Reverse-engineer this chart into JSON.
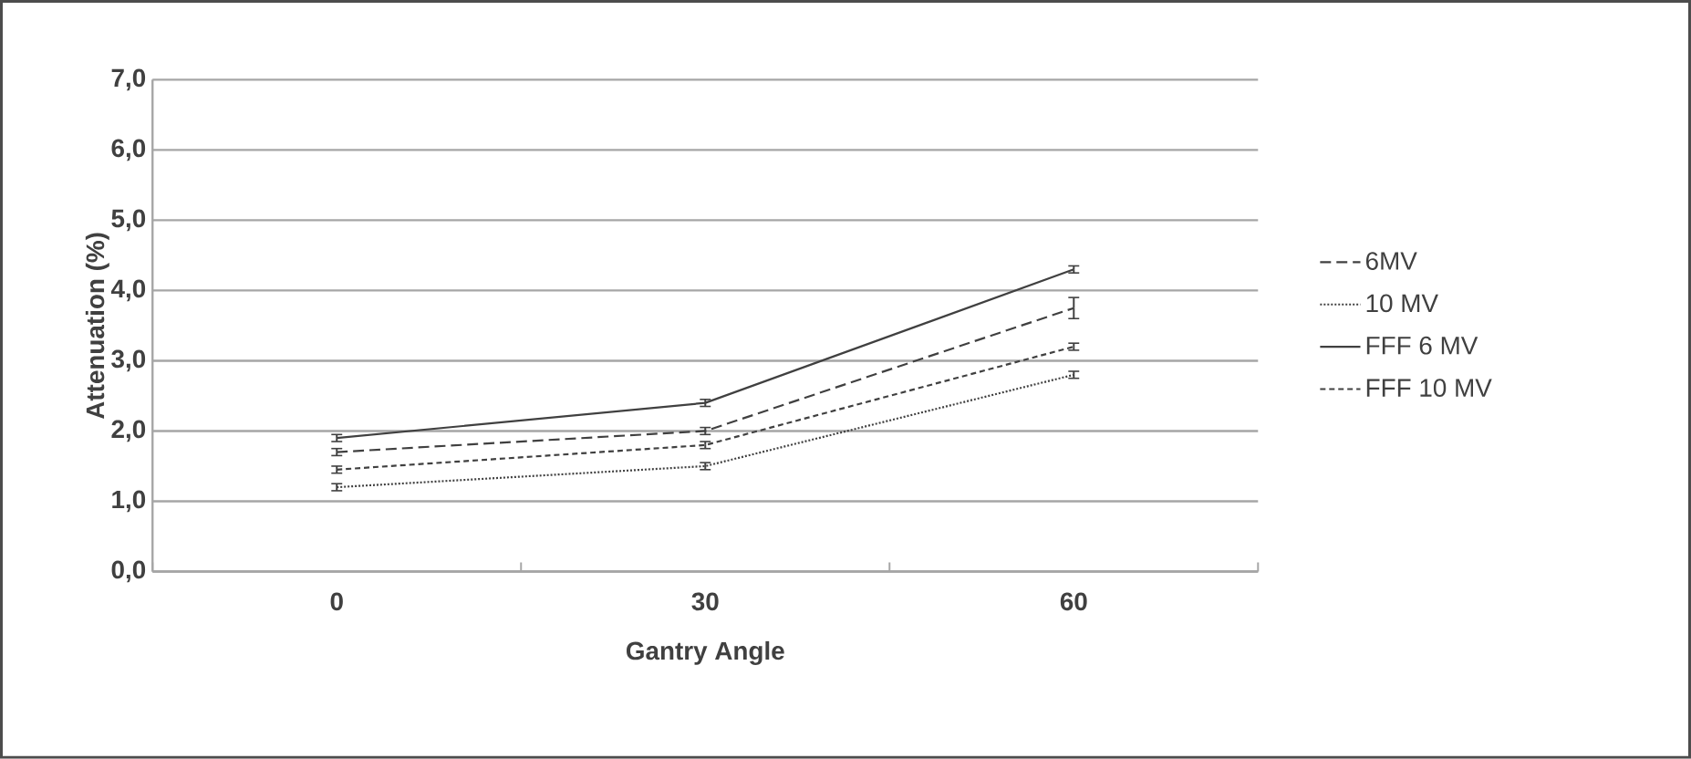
{
  "chart_data": {
    "type": "line",
    "xlabel": "Gantry Angle",
    "ylabel": "Attenuation (%)",
    "categories": [
      "0",
      "30",
      "60"
    ],
    "series": [
      {
        "name": "6MV",
        "color": "#404040",
        "line_style": "dashed",
        "values": [
          1.7,
          2.0,
          3.75
        ],
        "errors": [
          0.05,
          0.05,
          0.15
        ]
      },
      {
        "name": "10 MV",
        "color": "#404040",
        "line_style": "dotted",
        "values": [
          1.2,
          1.5,
          2.8
        ],
        "errors": [
          0.05,
          0.05,
          0.05
        ]
      },
      {
        "name": "FFF 6 MV",
        "color": "#404040",
        "line_style": "solid",
        "values": [
          1.9,
          2.4,
          4.3
        ],
        "errors": [
          0.05,
          0.05,
          0.05
        ]
      },
      {
        "name": "FFF 10 MV",
        "color": "#404040",
        "line_style": "dashed",
        "values": [
          1.45,
          1.8,
          3.2
        ],
        "errors": [
          0.05,
          0.05,
          0.05
        ]
      }
    ],
    "ylim": [
      0,
      7
    ],
    "yticks": [
      {
        "value": 0,
        "label": "0,0"
      },
      {
        "value": 1,
        "label": "1,0"
      },
      {
        "value": 2,
        "label": "2,0"
      },
      {
        "value": 3,
        "label": "3,0"
      },
      {
        "value": 4,
        "label": "4,0"
      },
      {
        "value": 5,
        "label": "5,0"
      },
      {
        "value": 6,
        "label": "6,0"
      },
      {
        "value": 7,
        "label": "7,0"
      }
    ],
    "grid": "y",
    "legend": "right",
    "marker": "none"
  }
}
